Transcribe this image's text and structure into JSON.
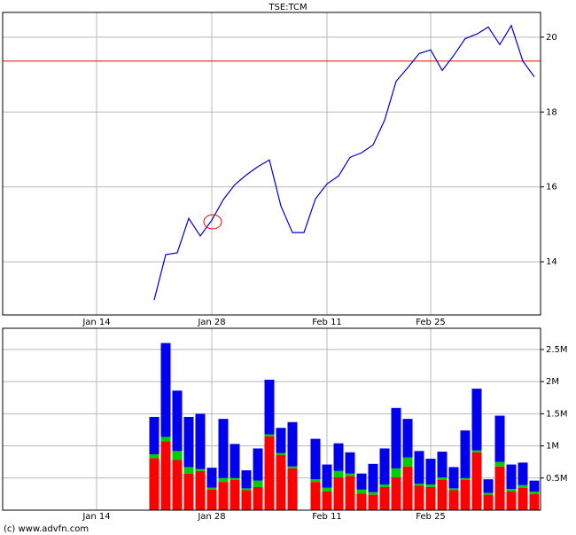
{
  "chart_data": [
    {
      "type": "line",
      "title": "TSE:TCM",
      "categories": [
        null,
        null,
        null,
        null,
        null,
        null,
        null,
        null,
        "Jan 14",
        null,
        null,
        null,
        null,
        null,
        null,
        null,
        null,
        null,
        "Jan 28",
        null,
        null,
        null,
        null,
        null,
        null,
        null,
        null,
        null,
        "Feb 11",
        null,
        null,
        null,
        null,
        null,
        null,
        null,
        null,
        "Feb 25",
        null,
        null,
        null,
        null,
        null,
        null,
        null,
        null,
        null
      ],
      "series": [
        {
          "color": "#0000cc",
          "values": [
            null,
            null,
            null,
            null,
            null,
            null,
            null,
            null,
            null,
            null,
            null,
            null,
            null,
            12.98,
            14.19,
            14.24,
            15.16,
            14.69,
            15.11,
            15.66,
            16.06,
            16.32,
            16.54,
            16.72,
            15.49,
            14.78,
            14.78,
            15.68,
            16.08,
            16.29,
            16.79,
            16.91,
            17.12,
            17.78,
            18.82,
            19.18,
            19.56,
            19.66,
            19.11,
            19.51,
            19.96,
            20.08,
            20.27,
            19.8,
            20.31,
            19.36,
            18.94
          ]
        }
      ],
      "reference_line": {
        "value": 19.36,
        "color": "#ff0000"
      },
      "ylim": [
        12.58,
        20.66
      ],
      "yticks": [
        14,
        16,
        18,
        20
      ],
      "grid": true
    },
    {
      "type": "bar",
      "stacked": true,
      "categories": [
        null,
        null,
        null,
        null,
        null,
        null,
        null,
        null,
        "Jan 14",
        null,
        null,
        null,
        null,
        null,
        null,
        null,
        null,
        null,
        "Jan 28",
        null,
        null,
        null,
        null,
        null,
        null,
        null,
        null,
        null,
        "Feb 11",
        null,
        null,
        null,
        null,
        null,
        null,
        null,
        null,
        "Feb 25",
        null,
        null,
        null,
        null,
        null,
        null,
        null,
        null,
        null
      ],
      "series": [
        {
          "color": "#ff0000",
          "values": [
            null,
            null,
            null,
            null,
            null,
            null,
            null,
            null,
            null,
            null,
            null,
            null,
            null,
            810000,
            1070000,
            780000,
            570000,
            610000,
            320000,
            440000,
            470000,
            310000,
            360000,
            1150000,
            860000,
            650000,
            null,
            440000,
            290000,
            510000,
            530000,
            260000,
            240000,
            360000,
            510000,
            680000,
            380000,
            360000,
            470000,
            310000,
            470000,
            900000,
            240000,
            680000,
            290000,
            350000,
            250000
          ]
        },
        {
          "color": "#00cc00",
          "values": [
            null,
            null,
            null,
            null,
            null,
            null,
            null,
            null,
            null,
            null,
            null,
            null,
            null,
            60000,
            70000,
            140000,
            100000,
            30000,
            30000,
            60000,
            30000,
            30000,
            100000,
            30000,
            30000,
            30000,
            null,
            40000,
            60000,
            100000,
            40000,
            60000,
            40000,
            40000,
            140000,
            140000,
            30000,
            40000,
            40000,
            30000,
            30000,
            30000,
            30000,
            70000,
            40000,
            40000,
            40000
          ]
        },
        {
          "color": "#0000ee",
          "values": [
            null,
            null,
            null,
            null,
            null,
            null,
            null,
            null,
            null,
            null,
            null,
            null,
            null,
            580000,
            1460000,
            940000,
            780000,
            860000,
            310000,
            920000,
            530000,
            280000,
            500000,
            850000,
            390000,
            690000,
            null,
            630000,
            360000,
            430000,
            330000,
            250000,
            440000,
            560000,
            940000,
            600000,
            510000,
            400000,
            400000,
            330000,
            740000,
            960000,
            210000,
            720000,
            380000,
            350000,
            170000
          ]
        }
      ],
      "ylim": [
        0,
        2830000
      ],
      "yticks": [
        {
          "value": 500000,
          "label": "0.5M"
        },
        {
          "value": 1000000,
          "label": "1M"
        },
        {
          "value": 1500000,
          "label": "1.5M"
        },
        {
          "value": 2000000,
          "label": "2M"
        },
        {
          "value": 2500000,
          "label": "2.5M"
        }
      ],
      "grid": true
    }
  ],
  "footer": "(c) www.advfn.com"
}
